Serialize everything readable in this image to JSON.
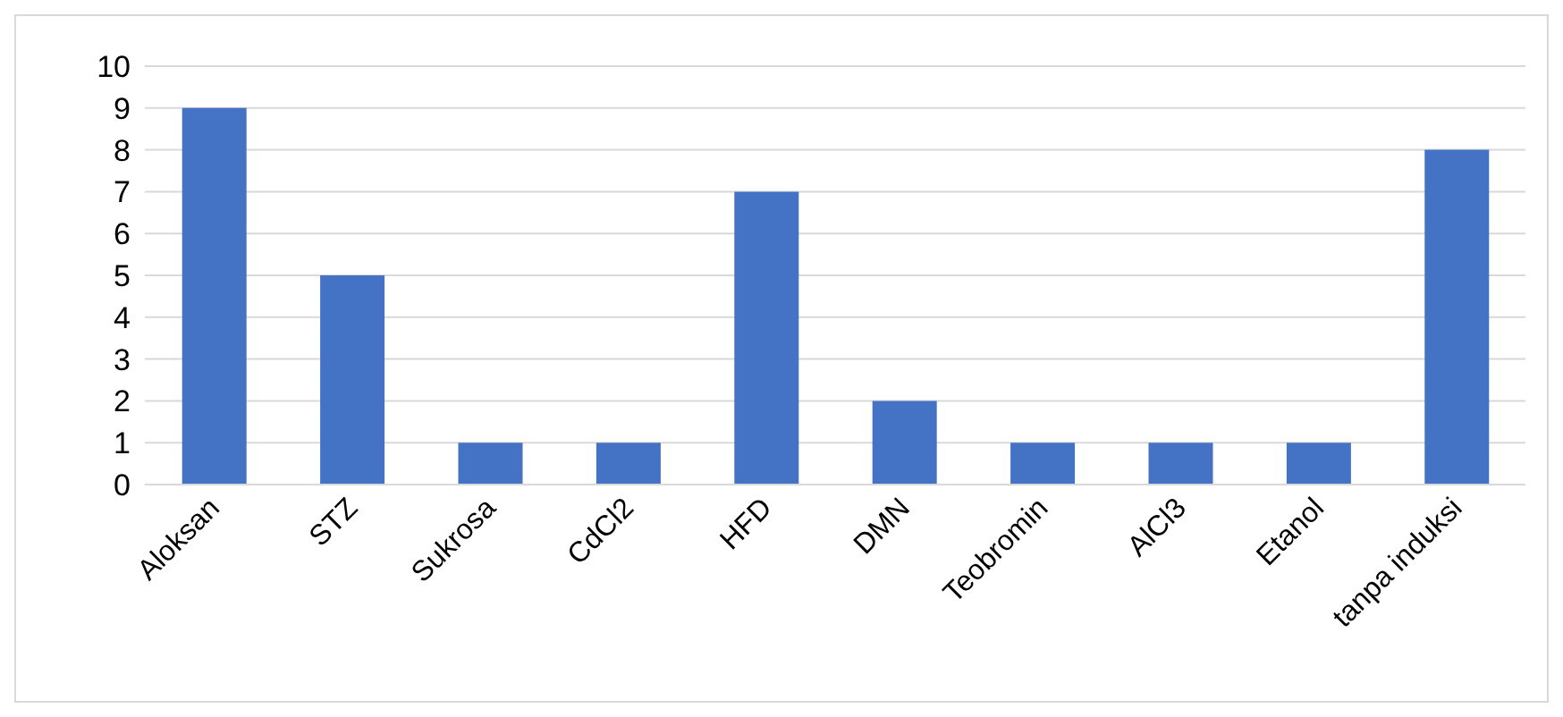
{
  "chart_data": {
    "type": "bar",
    "categories": [
      "Aloksan",
      "STZ",
      "Sukrosa",
      "CdCl2",
      "HFD",
      "DMN",
      "Teobromin",
      "AlCl3",
      "Etanol",
      "tanpa induksi"
    ],
    "values": [
      9,
      5,
      1,
      1,
      7,
      2,
      1,
      1,
      1,
      8
    ],
    "color": "#4472c4",
    "ylim": [
      0,
      10
    ],
    "yticks": [
      0,
      1,
      2,
      3,
      4,
      5,
      6,
      7,
      8,
      9,
      10
    ],
    "grid": "y"
  }
}
